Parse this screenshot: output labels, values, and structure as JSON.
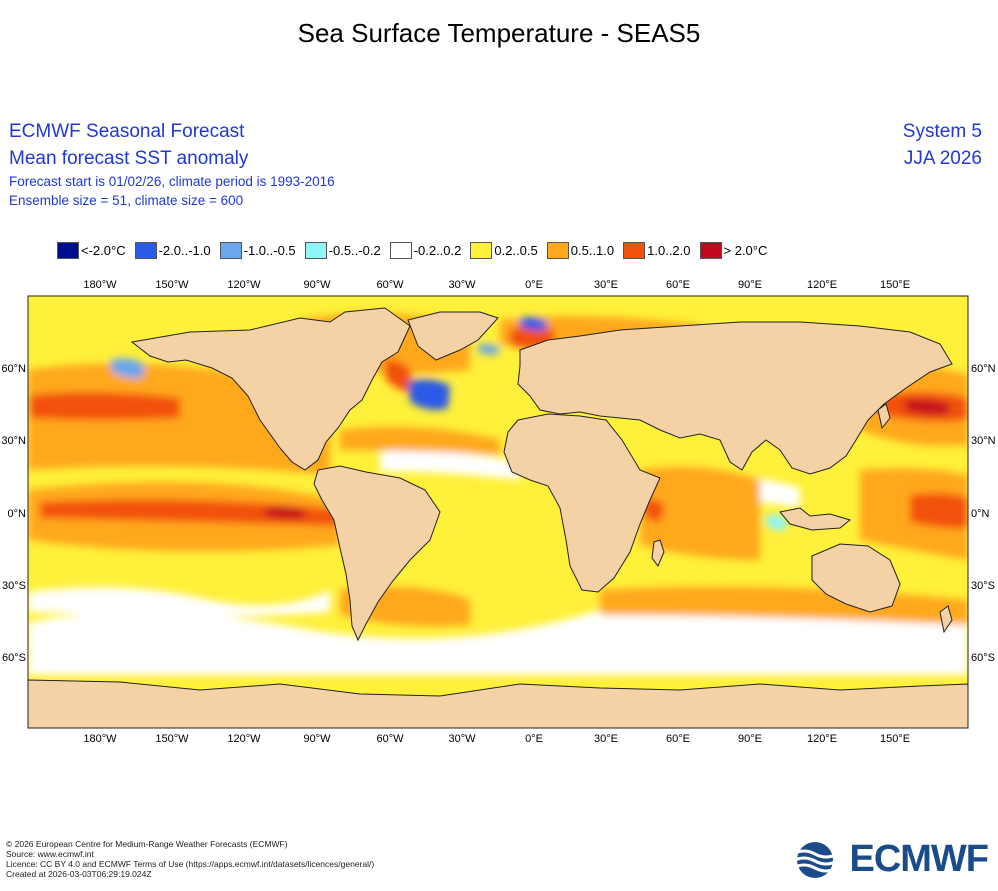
{
  "page_title": "Sea Surface Temperature - SEAS5",
  "header": {
    "org": "ECMWF Seasonal Forecast",
    "product": "Mean forecast SST anomaly",
    "forecast_info": "Forecast start is 01/02/26, climate period is 1993-2016",
    "ensemble_info": "Ensemble size = 51, climate size = 600",
    "system": "System 5",
    "season": "JJA 2026"
  },
  "legend": [
    {
      "label": "<-2.0°C",
      "color": "#000d8c"
    },
    {
      "label": "-2.0..-1.0",
      "color": "#2a5ae6"
    },
    {
      "label": "-1.0..-0.5",
      "color": "#6ca6ee"
    },
    {
      "label": "-0.5..-0.2",
      "color": "#8ff5f8"
    },
    {
      "label": "-0.2..0.2",
      "color": "#ffffff"
    },
    {
      "label": "0.2..0.5",
      "color": "#fff03a"
    },
    {
      "label": "0.5..1.0",
      "color": "#ffa81e"
    },
    {
      "label": "1.0..2.0",
      "color": "#f2510c"
    },
    {
      "label": "> 2.0°C",
      "color": "#c4071d"
    }
  ],
  "map": {
    "land_color": "#f5d2a5",
    "lon_labels": [
      "180°W",
      "150°W",
      "120°W",
      "90°W",
      "60°W",
      "30°W",
      "0°E",
      "30°E",
      "60°E",
      "90°E",
      "120°E",
      "150°E"
    ],
    "lat_labels": [
      "60°N",
      "30°N",
      "0°N",
      "30°S",
      "60°S"
    ]
  },
  "footer": {
    "copyright": "© 2026 European Centre for Medium-Range Weather Forecasts (ECMWF)",
    "source": "Source: www.ecmwf.int",
    "licence": "Licence: CC BY 4.0 and ECMWF Terms of Use (https://apps.ecmwf.int/datasets/licences/general/)",
    "created": "Created at 2026-03-03T06:29:19.024Z"
  },
  "logo_text": "ECMWF"
}
